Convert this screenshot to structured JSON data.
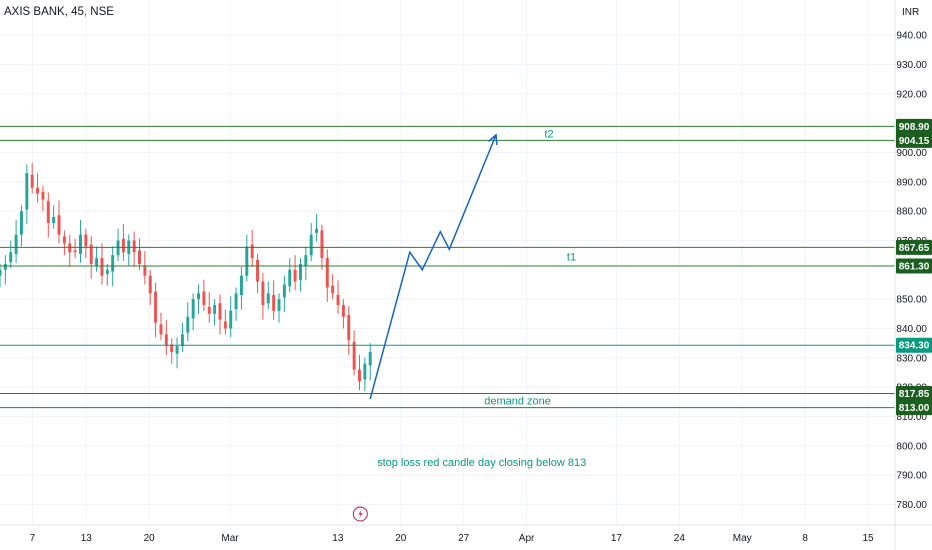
{
  "header": {
    "title": "AXIS BANK, 45, NSE",
    "currency": "INR"
  },
  "chart_data": {
    "type": "candlestick",
    "ylim": [
      773,
      952
    ],
    "y_ticks": [
      940,
      930,
      920,
      900,
      890,
      880,
      870,
      850,
      840,
      830,
      820,
      810,
      800,
      790,
      780
    ],
    "y_tick_labels": [
      "940.00",
      "930.00",
      "920.00",
      "900.00",
      "890.00",
      "880.00",
      "870.00",
      "850.00",
      "840.00",
      "830.00",
      "820.00",
      "810.00",
      "800.00",
      "790.00",
      "780.00"
    ],
    "x_ticks": [
      {
        "label": "7",
        "x": 7
      },
      {
        "label": "13",
        "x": 13
      },
      {
        "label": "20",
        "x": 20
      },
      {
        "label": "Mar",
        "x": 29
      },
      {
        "label": "13",
        "x": 41
      },
      {
        "label": "20",
        "x": 48
      },
      {
        "label": "27",
        "x": 55
      },
      {
        "label": "Apr",
        "x": 62
      },
      {
        "label": "17",
        "x": 72
      },
      {
        "label": "24",
        "x": 79
      },
      {
        "label": "May",
        "x": 86
      },
      {
        "label": "8",
        "x": 93
      },
      {
        "label": "15",
        "x": 100
      }
    ],
    "xlim": [
      3.4,
      103
    ],
    "candles_close": [
      860,
      862,
      866,
      872,
      880,
      893,
      888,
      886,
      884,
      876,
      878,
      872,
      869,
      866,
      866,
      872,
      868,
      862,
      864,
      858,
      860,
      865,
      870,
      866,
      870,
      866,
      862,
      858,
      852,
      842,
      838,
      834,
      832,
      834,
      838,
      844,
      850,
      852,
      848,
      845,
      848,
      843,
      840,
      846,
      852,
      858,
      868,
      864,
      856,
      848,
      852,
      846,
      850,
      855,
      860,
      856,
      862,
      865,
      872,
      874,
      864,
      854,
      852,
      848,
      844,
      836,
      826,
      822,
      828,
      832
    ],
    "candles_x_range": [
      3.4,
      44.6
    ],
    "bull_color": "#26a69a",
    "bear_color": "#ef5350",
    "levels": [
      {
        "value": 908.9,
        "label": "908.90",
        "color": "#1b5e20",
        "line_color": "#2e7d32"
      },
      {
        "value": 904.15,
        "label": "904.15",
        "color": "#1b5e20",
        "line_color": "#2e7d32"
      },
      {
        "value": 867.65,
        "label": "867.65",
        "color": "#1b5e20",
        "line_color": "#2e7d32"
      },
      {
        "value": 861.3,
        "label": "861.30",
        "color": "#1b5e20",
        "line_color": "#2e7d32"
      },
      {
        "value": 834.3,
        "label": "834.30",
        "color": "#089981",
        "line_color": "#089981"
      },
      {
        "value": 817.85,
        "label": "817.85",
        "color": "#1b5e20",
        "line_color": "#2e7d32"
      },
      {
        "value": 813.0,
        "label": "813.00",
        "color": "#1b5e20",
        "line_color": "#2e7d32"
      }
    ],
    "projection_color": "#1565c0",
    "projection": [
      {
        "x": 44.6,
        "y": 816
      },
      {
        "x": 49.0,
        "y": 866
      },
      {
        "x": 50.4,
        "y": 860
      },
      {
        "x": 52.4,
        "y": 873
      },
      {
        "x": 53.4,
        "y": 867
      },
      {
        "x": 58.6,
        "y": 906
      }
    ],
    "annotations": [
      {
        "text": "t2",
        "x": 64.5,
        "y": 906.5,
        "color": "#089981"
      },
      {
        "text": "t1",
        "x": 67.0,
        "y": 864.5,
        "color": "#089981"
      },
      {
        "text": "demand zone",
        "x": 61.0,
        "y": 815.4,
        "color": "#089981"
      },
      {
        "text": "stop loss red candle  day closing below 813",
        "x": 57.0,
        "y": 794.5,
        "color": "#089981"
      }
    ]
  }
}
